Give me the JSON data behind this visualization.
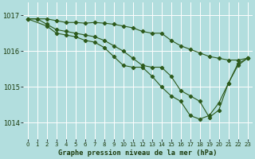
{
  "title": "Graphe pression niveau de la mer (hPa)",
  "bg_color": "#b2dede",
  "grid_color": "#ffffff",
  "line_color": "#2d5a1b",
  "x_ticks": [
    0,
    1,
    2,
    3,
    4,
    5,
    6,
    7,
    8,
    9,
    10,
    11,
    12,
    13,
    14,
    15,
    16,
    17,
    18,
    19,
    20,
    21,
    22,
    23
  ],
  "y_ticks": [
    1014,
    1015,
    1016,
    1017
  ],
  "ylim": [
    1013.55,
    1017.35
  ],
  "xlim": [
    -0.5,
    23.5
  ],
  "series": [
    {
      "x": [
        0,
        1,
        2,
        3,
        4,
        5,
        6,
        7,
        8,
        9,
        10,
        11,
        12,
        13,
        14,
        15,
        16,
        17,
        18,
        19,
        20,
        21,
        22,
        23
      ],
      "y": [
        1016.9,
        1016.9,
        1016.9,
        1016.85,
        1016.8,
        1016.8,
        1016.78,
        1016.8,
        1016.78,
        1016.75,
        1016.7,
        1016.65,
        1016.55,
        1016.5,
        1016.5,
        1016.3,
        1016.15,
        1016.05,
        1015.95,
        1015.85,
        1015.8,
        1015.75,
        1015.75,
        1015.8
      ]
    },
    {
      "x": [
        0,
        1,
        2,
        3,
        4,
        5,
        6,
        7,
        8,
        9,
        10,
        11,
        12,
        13,
        14,
        15,
        16,
        17,
        18,
        19,
        20,
        21,
        22,
        23
      ],
      "y": [
        1016.9,
        1016.9,
        1016.75,
        1016.6,
        1016.55,
        1016.5,
        1016.45,
        1016.4,
        1016.3,
        1016.15,
        1016.0,
        1015.8,
        1015.6,
        1015.55,
        1015.55,
        1015.3,
        1014.9,
        1014.75,
        1014.6,
        1014.15,
        1014.35,
        1015.1,
        1015.6,
        1015.8
      ]
    },
    {
      "x": [
        0,
        2,
        3,
        4,
        5,
        6,
        7,
        8,
        9,
        10,
        11,
        12,
        13,
        14,
        15,
        16,
        17,
        18,
        19,
        20,
        21,
        22,
        23
      ],
      "y": [
        1016.9,
        1016.7,
        1016.5,
        1016.45,
        1016.4,
        1016.3,
        1016.25,
        1016.1,
        1015.85,
        1015.6,
        1015.55,
        1015.55,
        1015.3,
        1015.0,
        1014.75,
        1014.6,
        1014.2,
        1014.1,
        1014.2,
        1014.55,
        1015.1,
        1015.65,
        1015.8
      ]
    }
  ]
}
